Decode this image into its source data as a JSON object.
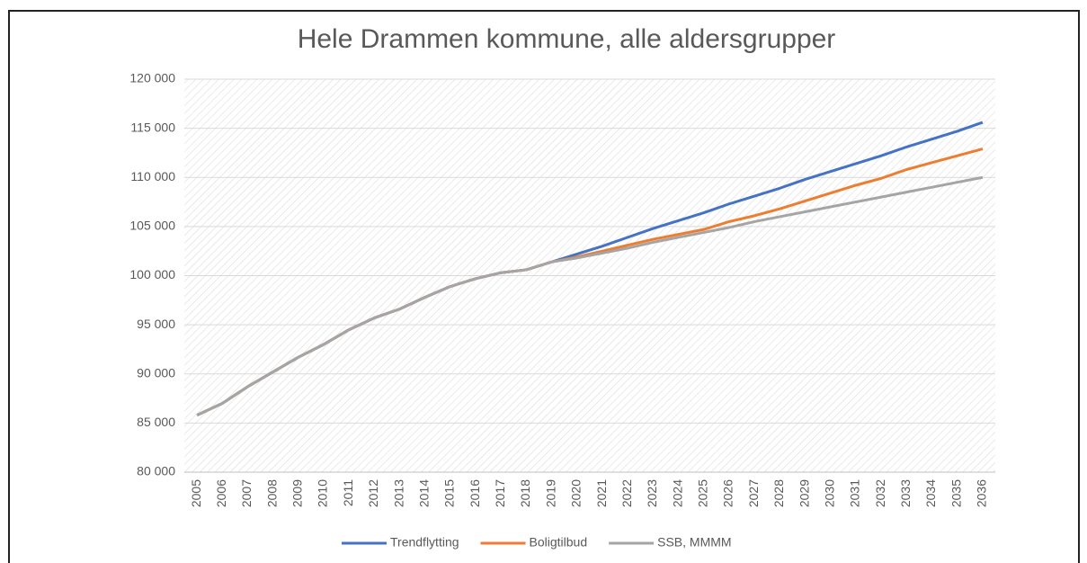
{
  "chart_data": {
    "type": "line",
    "title": "Hele Drammen kommune, alle aldersgrupper",
    "categories": [
      "2005",
      "2006",
      "2007",
      "2008",
      "2009",
      "2010",
      "2011",
      "2012",
      "2013",
      "2014",
      "2015",
      "2016",
      "2017",
      "2018",
      "2019",
      "2020",
      "2021",
      "2022",
      "2023",
      "2024",
      "2025",
      "2026",
      "2027",
      "2028",
      "2029",
      "2030",
      "2031",
      "2032",
      "2033",
      "2034",
      "2035",
      "2036"
    ],
    "series": [
      {
        "name": "Trendflytting",
        "color": "#4472c4",
        "values": [
          85800,
          87000,
          88700,
          90200,
          91700,
          93000,
          94500,
          95700,
          96600,
          97800,
          98900,
          99700,
          100300,
          100600,
          101400,
          102200,
          103000,
          103900,
          104800,
          105600,
          106400,
          107300,
          108100,
          108900,
          109800,
          110600,
          111400,
          112200,
          113100,
          113900,
          114700,
          115600
        ]
      },
      {
        "name": "Boligtilbud",
        "color": "#ed7d31",
        "values": [
          85800,
          87000,
          88700,
          90200,
          91700,
          93000,
          94500,
          95700,
          96600,
          97800,
          98900,
          99700,
          100300,
          100600,
          101400,
          101900,
          102500,
          103100,
          103700,
          104200,
          104700,
          105500,
          106100,
          106800,
          107600,
          108400,
          109200,
          109900,
          110800,
          111500,
          112200,
          112900
        ]
      },
      {
        "name": "SSB, MMMM",
        "color": "#a5a5a5",
        "values": [
          85800,
          87000,
          88700,
          90200,
          91700,
          93000,
          94500,
          95700,
          96600,
          97800,
          98900,
          99700,
          100300,
          100600,
          101400,
          101800,
          102300,
          102800,
          103400,
          103900,
          104400,
          104900,
          105500,
          106000,
          106500,
          107000,
          107500,
          108000,
          108500,
          109000,
          109500,
          110000
        ]
      }
    ],
    "ylim": [
      80000,
      120000
    ],
    "yticks": [
      {
        "value": 80000,
        "label": "80 000"
      },
      {
        "value": 85000,
        "label": "85 000"
      },
      {
        "value": 90000,
        "label": "90 000"
      },
      {
        "value": 95000,
        "label": "95 000"
      },
      {
        "value": 100000,
        "label": "100 000"
      },
      {
        "value": 105000,
        "label": "105 000"
      },
      {
        "value": 110000,
        "label": "110 000"
      },
      {
        "value": 115000,
        "label": "115 000"
      },
      {
        "value": 120000,
        "label": "120 000"
      }
    ],
    "grid": true,
    "legend": "bottom"
  }
}
